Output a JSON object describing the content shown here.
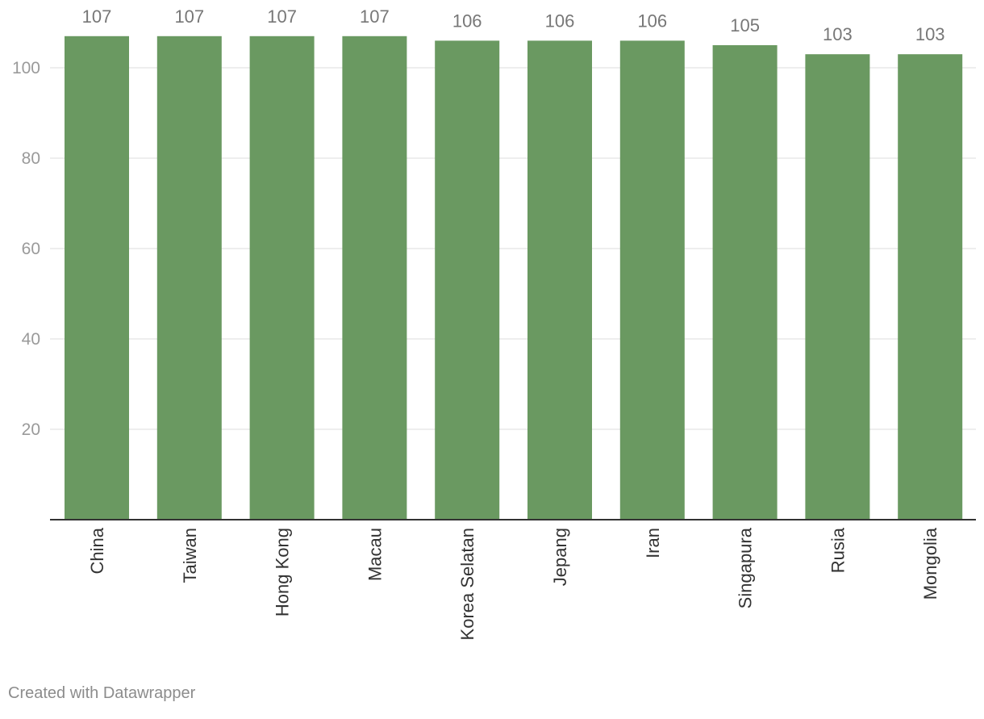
{
  "chart_data": {
    "type": "bar",
    "categories": [
      "China",
      "Taiwan",
      "Hong Kong",
      "Macau",
      "Korea Selatan",
      "Jepang",
      "Iran",
      "Singapura",
      "Rusia",
      "Mongolia"
    ],
    "values": [
      107,
      107,
      107,
      107,
      106,
      106,
      106,
      105,
      103,
      103
    ],
    "data_labels": [
      "107",
      "107",
      "107",
      "107",
      "106",
      "106",
      "106",
      "105",
      "103",
      "103"
    ],
    "ylim": [
      0,
      110
    ],
    "yticks": [
      20,
      40,
      60,
      80,
      100
    ],
    "ytick_labels": [
      "20",
      "40",
      "60",
      "80",
      "100"
    ],
    "grid": true,
    "bar_color": "#6a9961",
    "gridline_color": "#e3e3e3",
    "axis_color": "#333333",
    "tick_label_color": "#9a9a9a",
    "value_label_color": "#777777",
    "category_label_color": "#333333"
  },
  "footer": {
    "credit": "Created with Datawrapper"
  }
}
